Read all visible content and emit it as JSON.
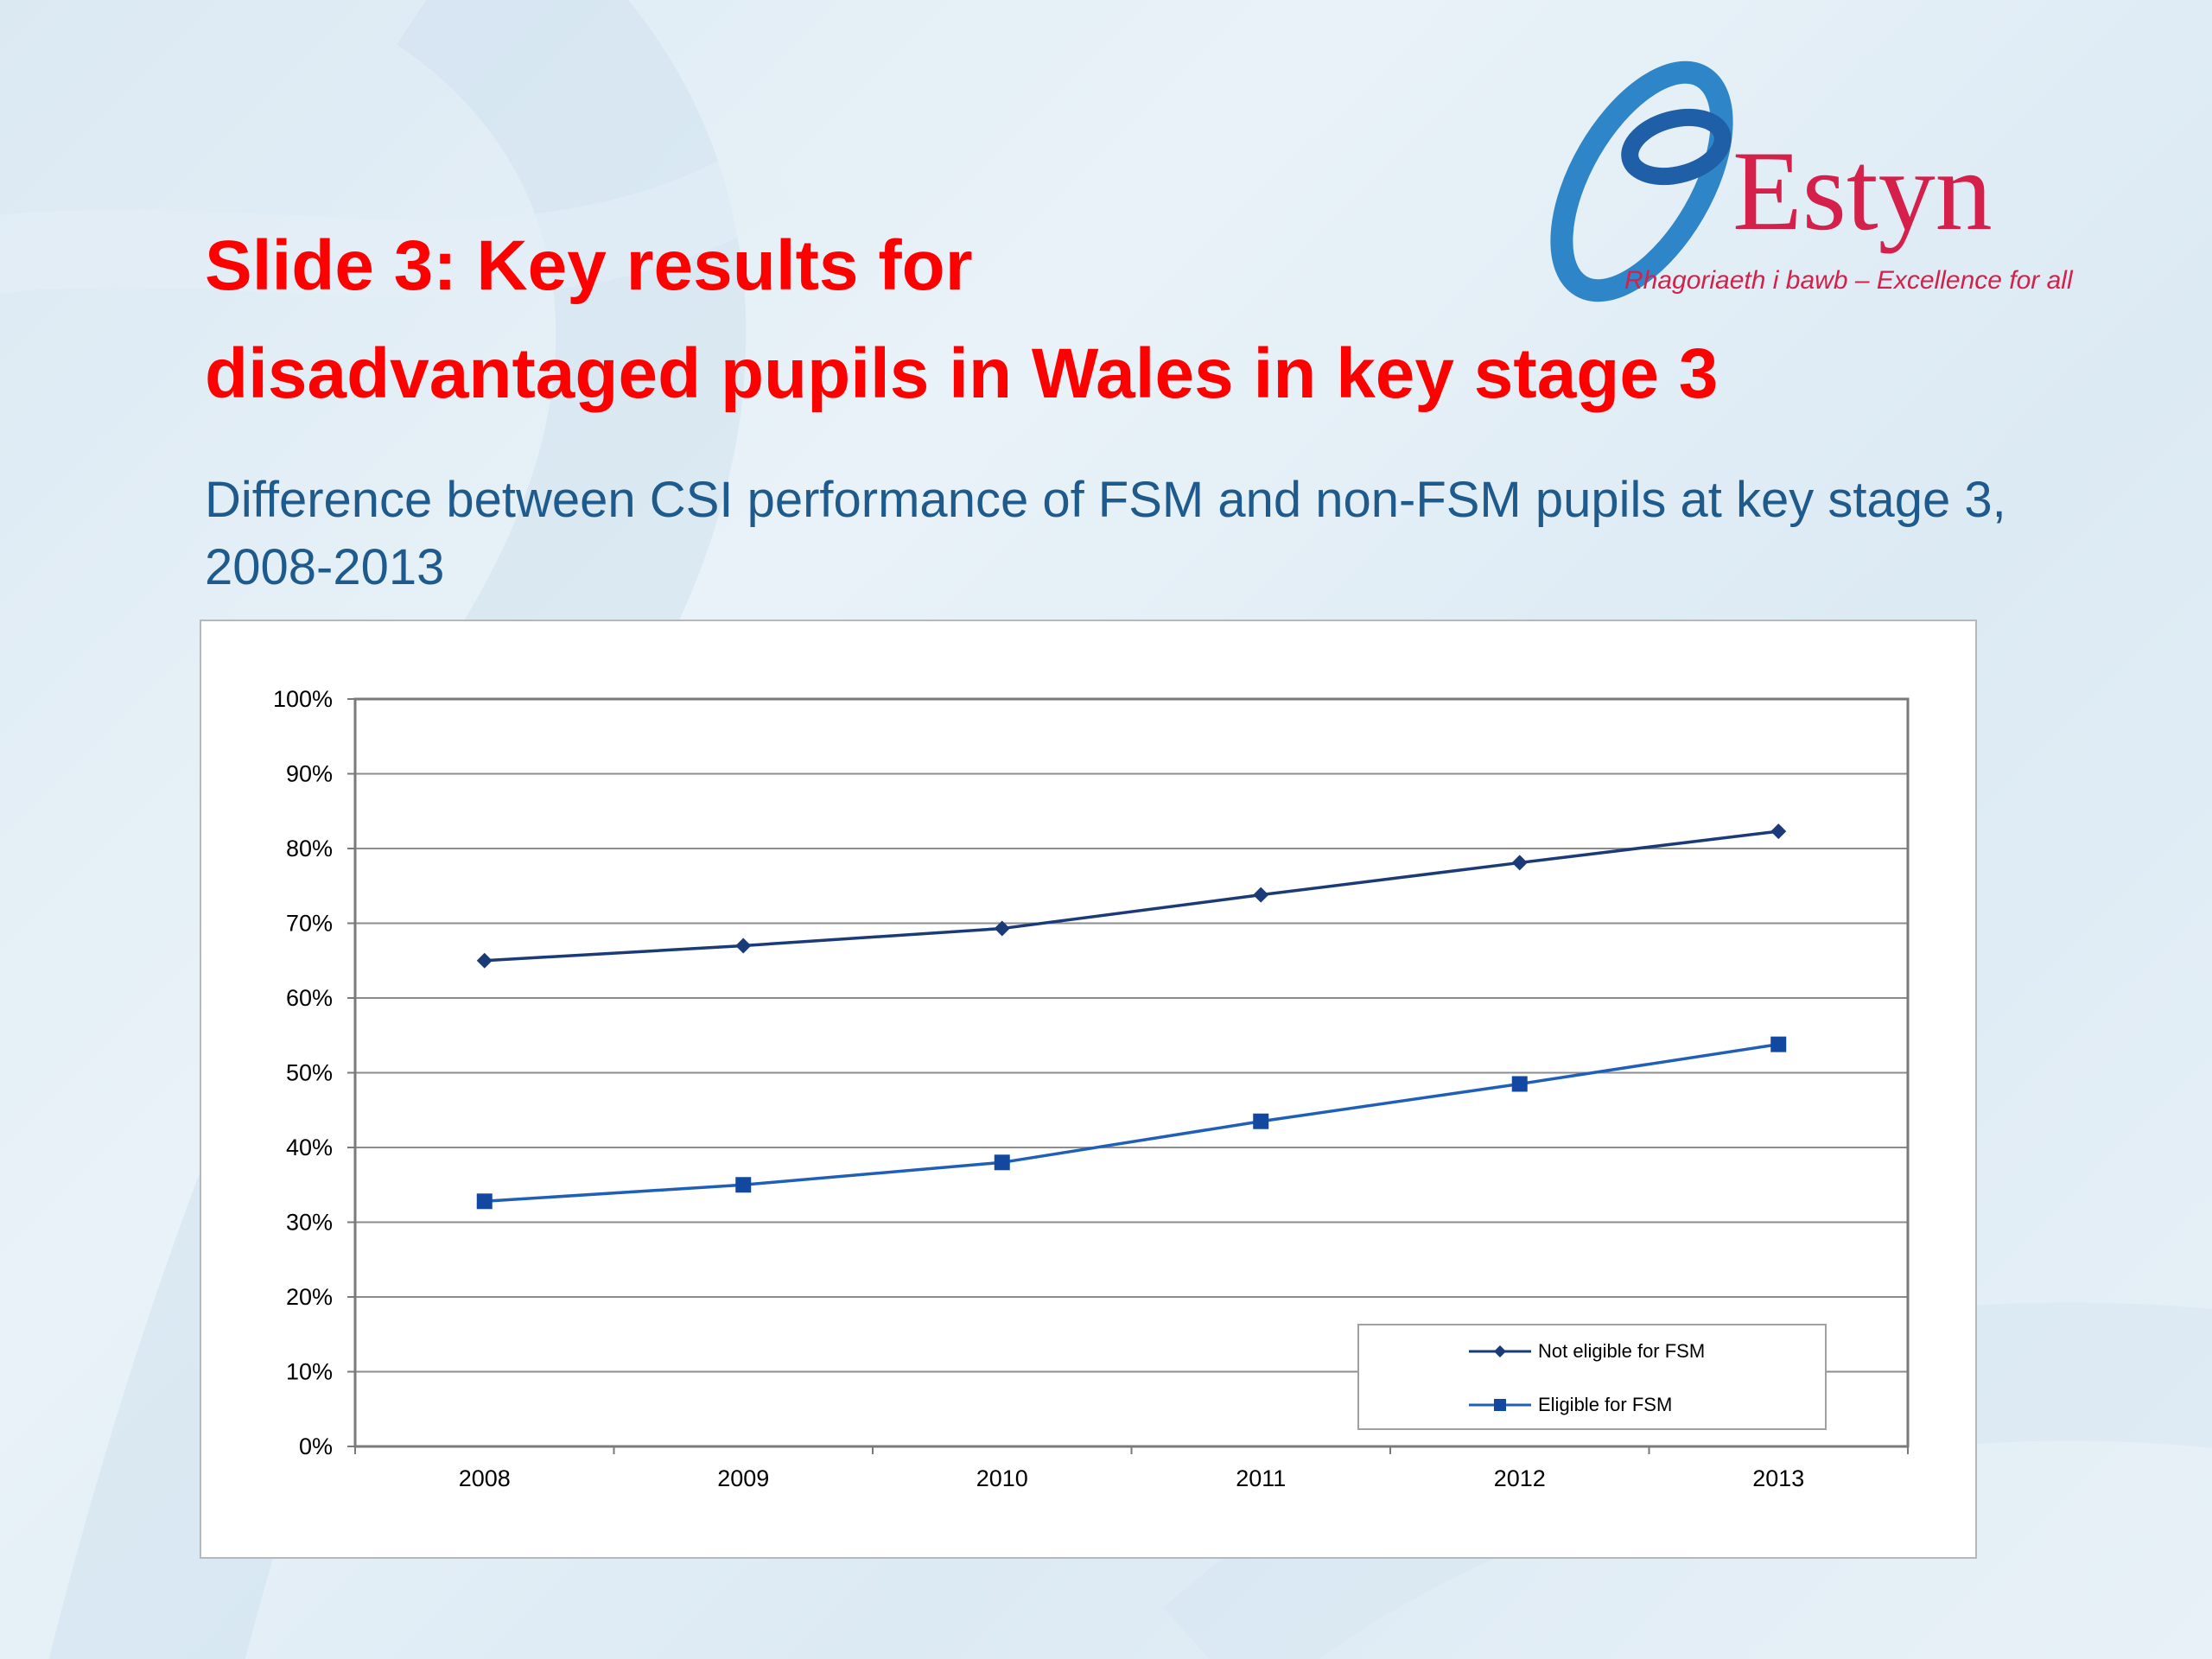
{
  "slide": {
    "title_line1": "Slide 3:  Key results for",
    "title_line2": "disadvantaged pupils in Wales in key stage 3",
    "subtitle": "Difference between CSI performance of FSM and non-FSM pupils at key stage 3, 2008-2013"
  },
  "logo": {
    "name": "Estyn",
    "tagline": "Rhagoriaeth i bawb – Excellence for all"
  },
  "colors": {
    "title": "#ff0000",
    "subtitle": "#1f5a8c",
    "series_not_eligible": "#1a3a78",
    "series_eligible": "#1f5fb8",
    "logo_text": "#d4204a",
    "logo_mark": "#2e86c8"
  },
  "chart_data": {
    "type": "line",
    "categories": [
      "2008",
      "2009",
      "2010",
      "2011",
      "2012",
      "2013"
    ],
    "series": [
      {
        "name": "Not eligible for FSM",
        "marker": "diamond",
        "values": [
          65,
          67,
          69.3,
          73.8,
          78.1,
          82.3
        ]
      },
      {
        "name": "Eligible for FSM",
        "marker": "square",
        "values": [
          32.8,
          35,
          38,
          43.5,
          48.5,
          53.8
        ]
      }
    ],
    "title": "",
    "xlabel": "",
    "ylabel": "",
    "ylim": [
      0,
      100
    ],
    "yticks": [
      "0%",
      "10%",
      "20%",
      "30%",
      "40%",
      "50%",
      "60%",
      "70%",
      "80%",
      "90%",
      "100%"
    ],
    "grid": true,
    "legend_position": "bottom-right"
  }
}
